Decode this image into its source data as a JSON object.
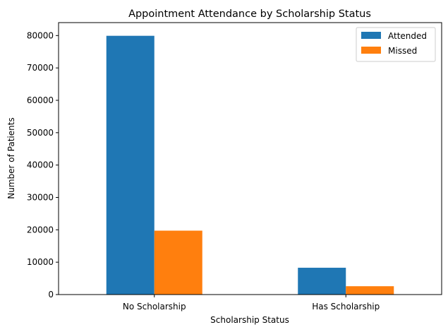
{
  "chart_data": {
    "type": "bar",
    "title": "Appointment Attendance by Scholarship Status",
    "xlabel": "Scholarship Status",
    "ylabel": "Number of Patients",
    "categories": [
      "No Scholarship",
      "Has Scholarship"
    ],
    "series": [
      {
        "name": "Attended",
        "values": [
          79925,
          8283
        ],
        "color": "#1f77b4"
      },
      {
        "name": "Missed",
        "values": [
          19741,
          2578
        ],
        "color": "#ff7f0e"
      }
    ],
    "ylim": [
      0,
      84000
    ],
    "yticks": [
      0,
      10000,
      20000,
      30000,
      40000,
      50000,
      60000,
      70000,
      80000
    ],
    "grid": false,
    "legend_position": "top-right"
  }
}
